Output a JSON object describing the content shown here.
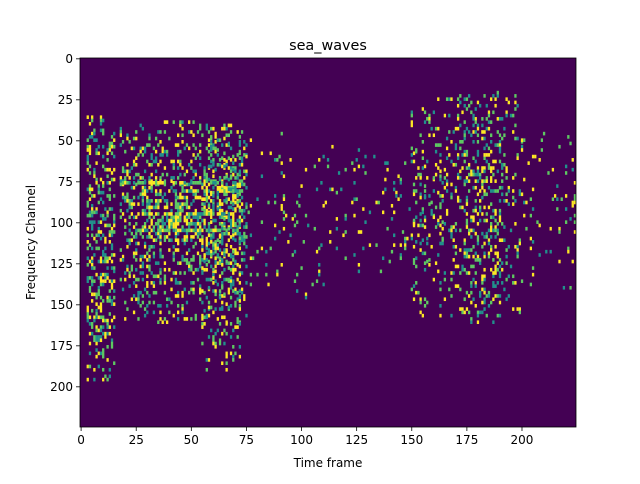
{
  "chart_data": {
    "type": "heatmap",
    "title": "sea_waves",
    "xlabel": "Time frame",
    "ylabel": "Frequency Channel",
    "xlim": [
      -0.5,
      224.5
    ],
    "ylim": [
      224.5,
      -0.5
    ],
    "x_ticks": [
      0,
      25,
      50,
      75,
      100,
      125,
      150,
      175,
      200
    ],
    "y_ticks": [
      0,
      25,
      50,
      75,
      100,
      125,
      150,
      175,
      200
    ],
    "colormap": "viridis",
    "background_color": "#440154",
    "value_range": [
      0,
      1
    ],
    "grid": false,
    "legend": "none",
    "event_colors": [
      "#21918c",
      "#5ec962",
      "#fde725"
    ],
    "event_regions": [
      {
        "x_range": [
          3,
          15
        ],
        "y_range": [
          35,
          195
        ],
        "density": 0.36
      },
      {
        "x_range": [
          18,
          75
        ],
        "y_range": [
          40,
          160
        ],
        "density": 0.3
      },
      {
        "x_range": [
          28,
          73
        ],
        "y_range": [
          72,
          112
        ],
        "density": 0.28
      },
      {
        "x_range": [
          55,
          72
        ],
        "y_range": [
          45,
          190
        ],
        "density": 0.18
      },
      {
        "x_range": [
          75,
          120
        ],
        "y_range": [
          45,
          145
        ],
        "density": 0.05
      },
      {
        "x_range": [
          120,
          165
        ],
        "y_range": [
          55,
          130
        ],
        "density": 0.06
      },
      {
        "x_range": [
          150,
          200
        ],
        "y_range": [
          20,
          160
        ],
        "density": 0.13
      },
      {
        "x_range": [
          168,
          190
        ],
        "y_range": [
          20,
          160
        ],
        "density": 0.18
      },
      {
        "x_range": [
          200,
          224
        ],
        "y_range": [
          45,
          140
        ],
        "density": 0.06
      }
    ],
    "horizontal_streaks": [
      {
        "y": 75,
        "x_range": [
          18,
          70
        ]
      },
      {
        "y": 80,
        "x_range": [
          25,
          72
        ]
      },
      {
        "y": 94,
        "x_range": [
          28,
          68
        ]
      },
      {
        "y": 104,
        "x_range": [
          25,
          72
        ]
      },
      {
        "y": 38,
        "x_range": [
          38,
          52
        ]
      }
    ]
  }
}
